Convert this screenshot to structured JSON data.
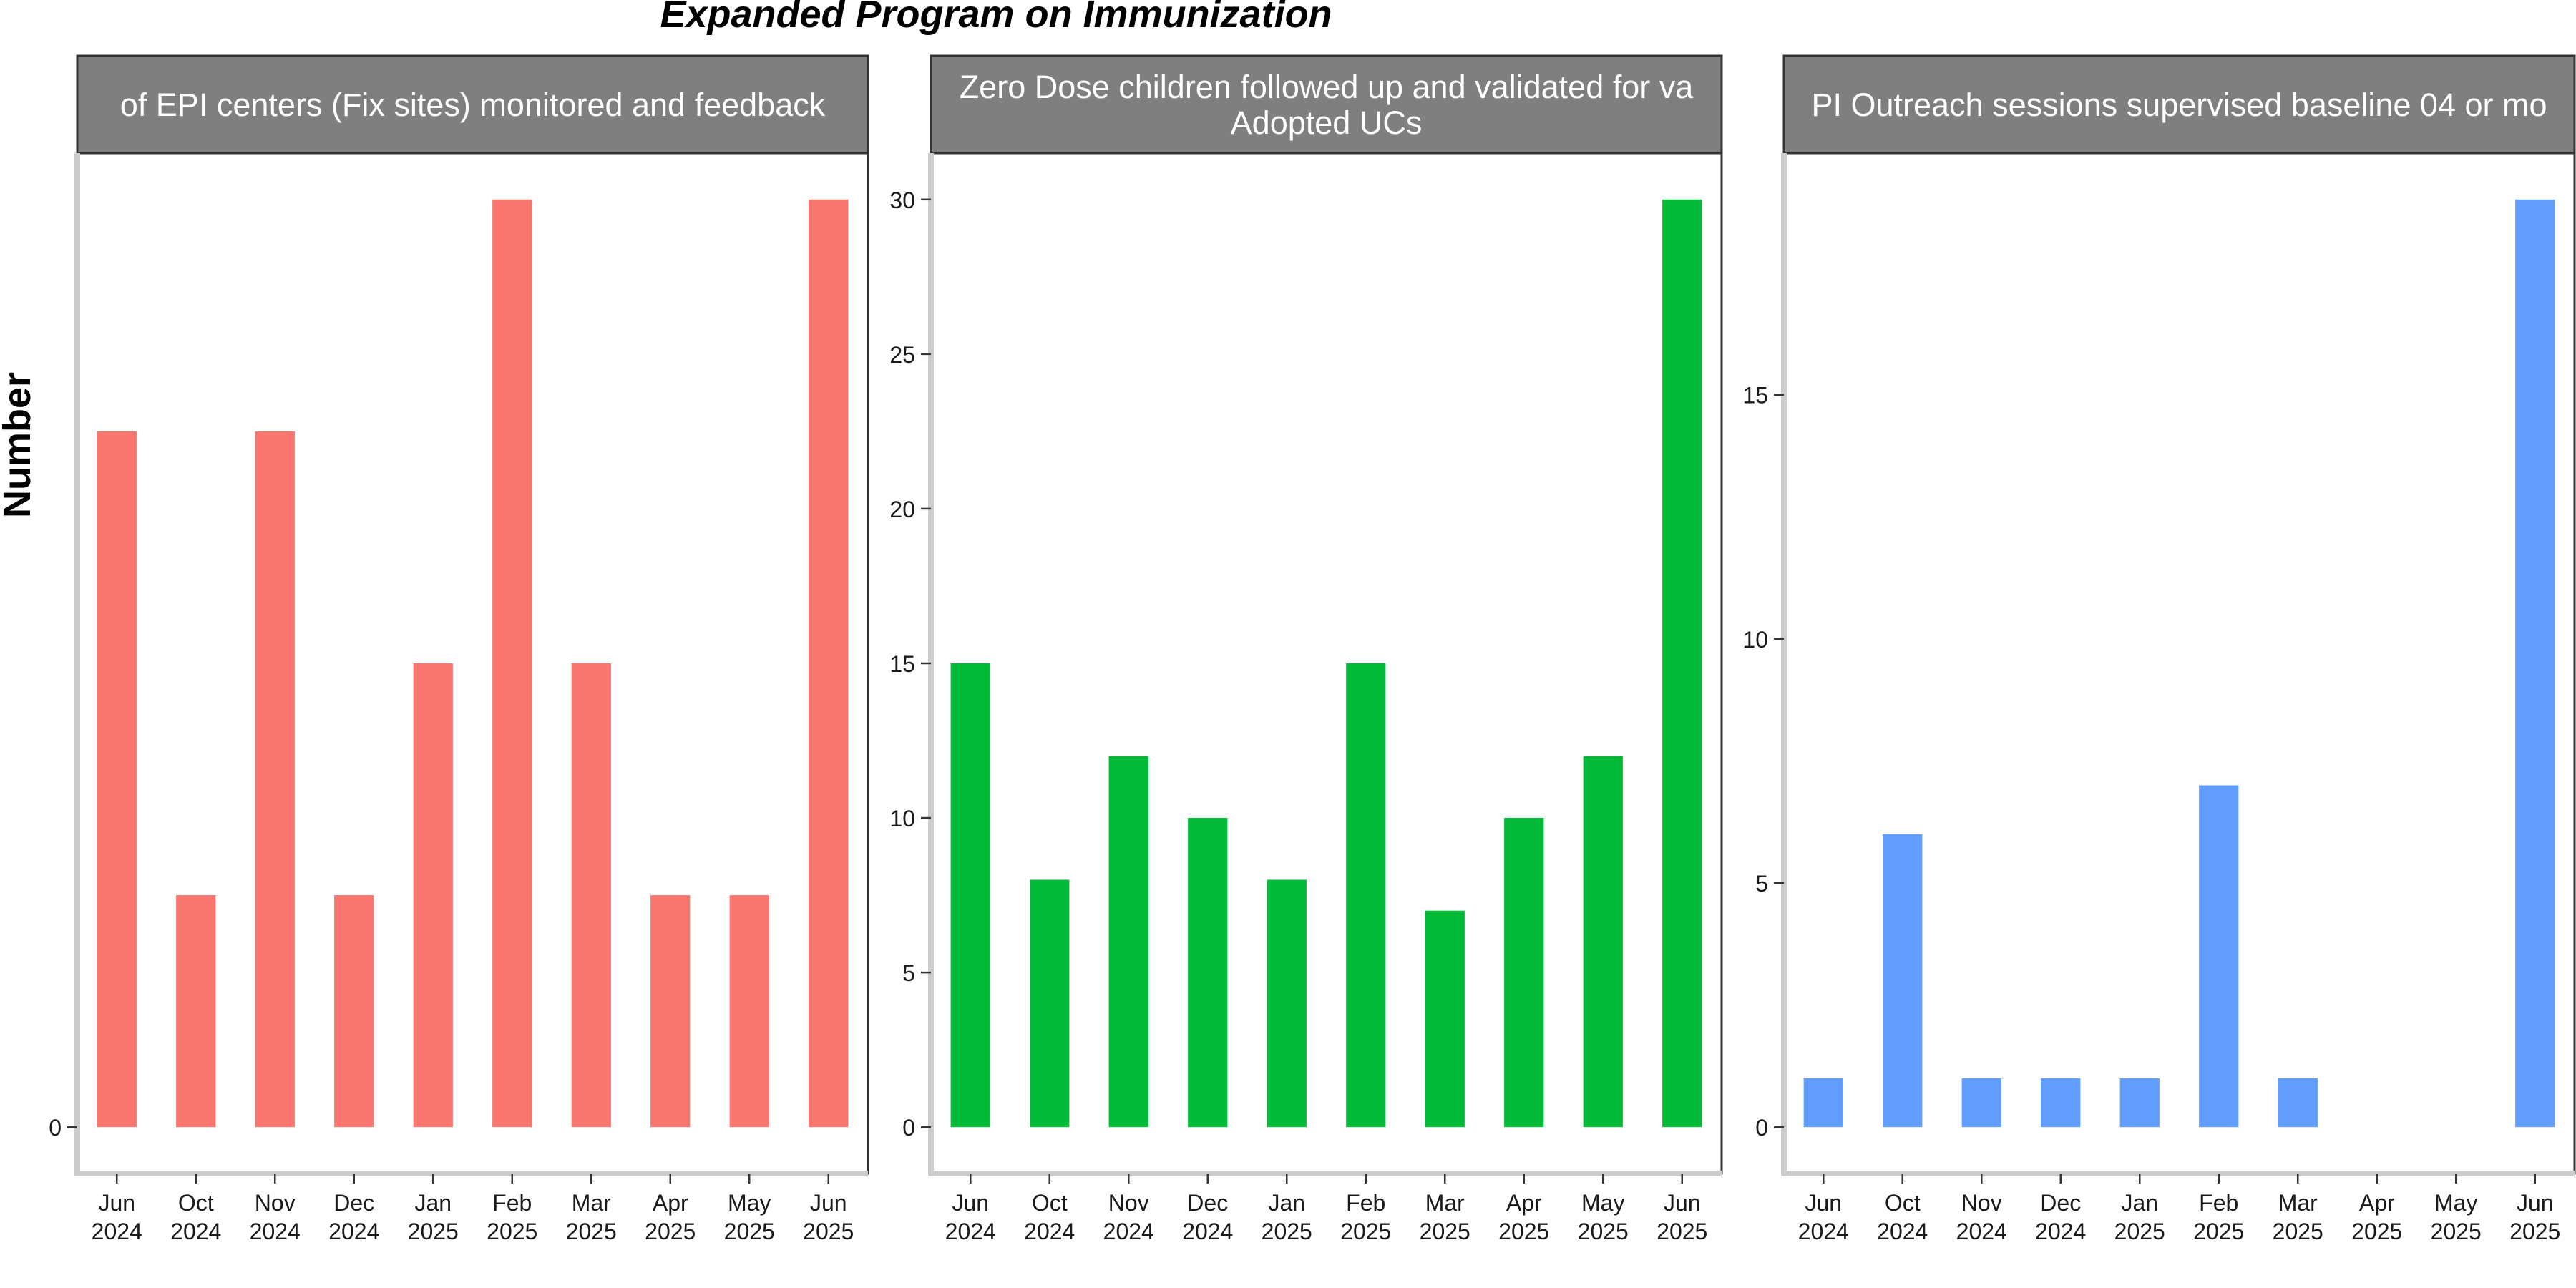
{
  "chart_data": {
    "title": "Expanded Program on Immunization",
    "ylabel": "Number",
    "type": "bar",
    "grid": false,
    "panels": [
      {
        "strip": [
          "of EPI centers (Fix sites) monitored and feedback"
        ],
        "color": "#F8766D",
        "categories": [
          [
            "Jun",
            "2024"
          ],
          [
            "Oct",
            "2024"
          ],
          [
            "Nov",
            "2024"
          ],
          [
            "Dec",
            "2024"
          ],
          [
            "Jan",
            "2025"
          ],
          [
            "Feb",
            "2025"
          ],
          [
            "Mar",
            "2025"
          ],
          [
            "Apr",
            "2025"
          ],
          [
            "May",
            "2025"
          ],
          [
            "Jun",
            "2025"
          ]
        ],
        "values": [
          3,
          1,
          3,
          1,
          2,
          4,
          2,
          1,
          1,
          4
        ],
        "ylim": [
          -0.2,
          4.2
        ],
        "yticks": [
          0
        ]
      },
      {
        "strip": [
          "Zero Dose children followed up and validated for va",
          "Adopted UCs"
        ],
        "color": "#00BA38",
        "categories": [
          [
            "Jun",
            "2024"
          ],
          [
            "Oct",
            "2024"
          ],
          [
            "Nov",
            "2024"
          ],
          [
            "Dec",
            "2024"
          ],
          [
            "Jan",
            "2025"
          ],
          [
            "Feb",
            "2025"
          ],
          [
            "Mar",
            "2025"
          ],
          [
            "Apr",
            "2025"
          ],
          [
            "May",
            "2025"
          ],
          [
            "Jun",
            "2025"
          ]
        ],
        "values": [
          15,
          8,
          12,
          10,
          8,
          15,
          7,
          10,
          12,
          30
        ],
        "ylim": [
          -1.5,
          31.5
        ],
        "yticks": [
          0,
          5,
          10,
          15,
          20,
          25,
          30
        ]
      },
      {
        "strip": [
          "PI Outreach sessions supervised baseline 04 or mo"
        ],
        "color": "#619CFF",
        "categories": [
          [
            "Jun",
            "2024"
          ],
          [
            "Oct",
            "2024"
          ],
          [
            "Nov",
            "2024"
          ],
          [
            "Dec",
            "2024"
          ],
          [
            "Jan",
            "2025"
          ],
          [
            "Feb",
            "2025"
          ],
          [
            "Mar",
            "2025"
          ],
          [
            "Apr",
            "2025"
          ],
          [
            "May",
            "2025"
          ],
          [
            "Jun",
            "2025"
          ]
        ],
        "values": [
          1,
          6,
          1,
          1,
          1,
          7,
          1,
          0,
          0,
          19
        ],
        "ylim": [
          -0.95,
          19.95
        ],
        "yticks": [
          0,
          5,
          10,
          15
        ]
      }
    ]
  }
}
